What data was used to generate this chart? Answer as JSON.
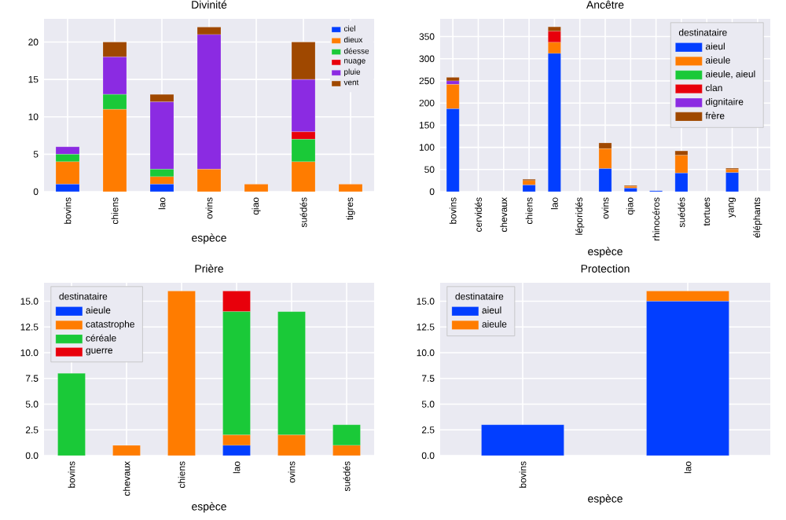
{
  "chart_data": [
    {
      "type": "bar",
      "title": "Divinité",
      "xlabel": "espèce",
      "stacked": true,
      "grid": true,
      "legend": "top right",
      "categories": [
        "bovins",
        "chiens",
        "lao",
        "ovins",
        "qiao",
        "suédés",
        "tigres"
      ],
      "ylim": [
        0,
        23.1
      ],
      "yticks": [
        0,
        5,
        10,
        15,
        20
      ],
      "series": [
        {
          "name": "ciel",
          "color": "#023eff",
          "values": [
            1,
            0,
            1,
            0,
            0,
            0,
            0
          ]
        },
        {
          "name": "dieux",
          "color": "#ff7c00",
          "values": [
            3,
            11,
            1,
            3,
            1,
            4,
            1
          ]
        },
        {
          "name": "déesse",
          "color": "#1ac938",
          "values": [
            1,
            2,
            1,
            0,
            0,
            3,
            0
          ]
        },
        {
          "name": "nuage",
          "color": "#e8000b",
          "values": [
            0,
            0,
            0,
            0,
            0,
            1,
            0
          ]
        },
        {
          "name": "pluie",
          "color": "#8b2be2",
          "values": [
            1,
            5,
            9,
            18,
            0,
            7,
            0
          ]
        },
        {
          "name": "vent",
          "color": "#9f4800",
          "values": [
            0,
            2,
            1,
            1,
            0,
            5,
            0
          ]
        }
      ]
    },
    {
      "type": "bar",
      "title": "Ancêtre",
      "xlabel": "espèce",
      "legend_title": "destinataire",
      "stacked": true,
      "grid": true,
      "legend": "top right",
      "categories": [
        "bovins",
        "cervidés",
        "chevaux",
        "chiens",
        "lao",
        "léporidés",
        "ovins",
        "qiao",
        "rhinocéros",
        "suédés",
        "tortues",
        "yang",
        "éléphants"
      ],
      "ylim": [
        0,
        390
      ],
      "yticks": [
        0,
        50,
        100,
        150,
        200,
        250,
        300,
        350
      ],
      "series": [
        {
          "name": "aieul",
          "color": "#023eff",
          "values": [
            187,
            0,
            0,
            15,
            312,
            0,
            52,
            8,
            2,
            42,
            0,
            43,
            0
          ]
        },
        {
          "name": "aieule",
          "color": "#ff7c00",
          "values": [
            55,
            0,
            0,
            10,
            25,
            0,
            45,
            4,
            0,
            40,
            0,
            7,
            0
          ]
        },
        {
          "name": "aieule, aieul",
          "color": "#1ac938",
          "values": [
            0,
            0,
            0,
            0,
            null,
            0,
            0,
            0,
            0,
            0,
            0,
            0,
            0
          ]
        },
        {
          "name": "clan",
          "color": "#e8000b",
          "values": [
            0,
            0,
            0,
            0,
            25,
            0,
            0,
            0,
            0,
            0,
            0,
            0,
            0
          ]
        },
        {
          "name": "dignitaire",
          "color": "#8b2be2",
          "values": [
            8,
            0,
            0,
            0,
            0,
            0,
            0,
            0,
            0,
            0,
            0,
            0,
            0
          ]
        },
        {
          "name": "frère",
          "color": "#9f4800",
          "values": [
            8,
            0,
            0,
            3,
            10,
            0,
            13,
            2,
            0,
            10,
            0,
            3,
            0
          ]
        }
      ]
    },
    {
      "type": "bar",
      "title": "Prière",
      "xlabel": "espèce",
      "legend_title": "destinataire",
      "stacked": true,
      "grid": true,
      "legend": "top left",
      "categories": [
        "bovins",
        "chevaux",
        "chiens",
        "lao",
        "ovins",
        "suédés"
      ],
      "ylim": [
        0,
        16.8
      ],
      "yticks": [
        {
          "value": 0,
          "label": "0.0"
        },
        2.5,
        {
          "value": 5,
          "label": "5.0"
        },
        7.5,
        {
          "value": 10,
          "label": "10.0"
        },
        12.5,
        {
          "value": 15,
          "label": "15.0"
        }
      ],
      "series": [
        {
          "name": "aieule",
          "color": "#023eff",
          "values": [
            0,
            0,
            0,
            1,
            0,
            0
          ]
        },
        {
          "name": "catastrophe",
          "color": "#ff7c00",
          "values": [
            0,
            1,
            16,
            1,
            2,
            1
          ]
        },
        {
          "name": "céréale",
          "color": "#1ac938",
          "values": [
            8,
            0,
            0,
            12,
            12,
            2
          ]
        },
        {
          "name": "guerre",
          "color": "#e8000b",
          "values": [
            0,
            0,
            0,
            2,
            0,
            0
          ]
        }
      ]
    },
    {
      "type": "bar",
      "title": "Protection",
      "xlabel": "espèce",
      "legend_title": "destinataire",
      "stacked": true,
      "grid": true,
      "legend": "top left",
      "categories": [
        "bovins",
        "lao"
      ],
      "ylim": [
        0,
        16.8
      ],
      "yticks": [
        {
          "value": 0,
          "label": "0.0"
        },
        2.5,
        {
          "value": 5,
          "label": "5.0"
        },
        7.5,
        {
          "value": 10,
          "label": "10.0"
        },
        12.5,
        {
          "value": 15,
          "label": "15.0"
        }
      ],
      "series": [
        {
          "name": "aieul",
          "color": "#023eff",
          "values": [
            3,
            15
          ]
        },
        {
          "name": "aieule",
          "color": "#ff7c00",
          "values": [
            0,
            1
          ]
        }
      ]
    }
  ]
}
